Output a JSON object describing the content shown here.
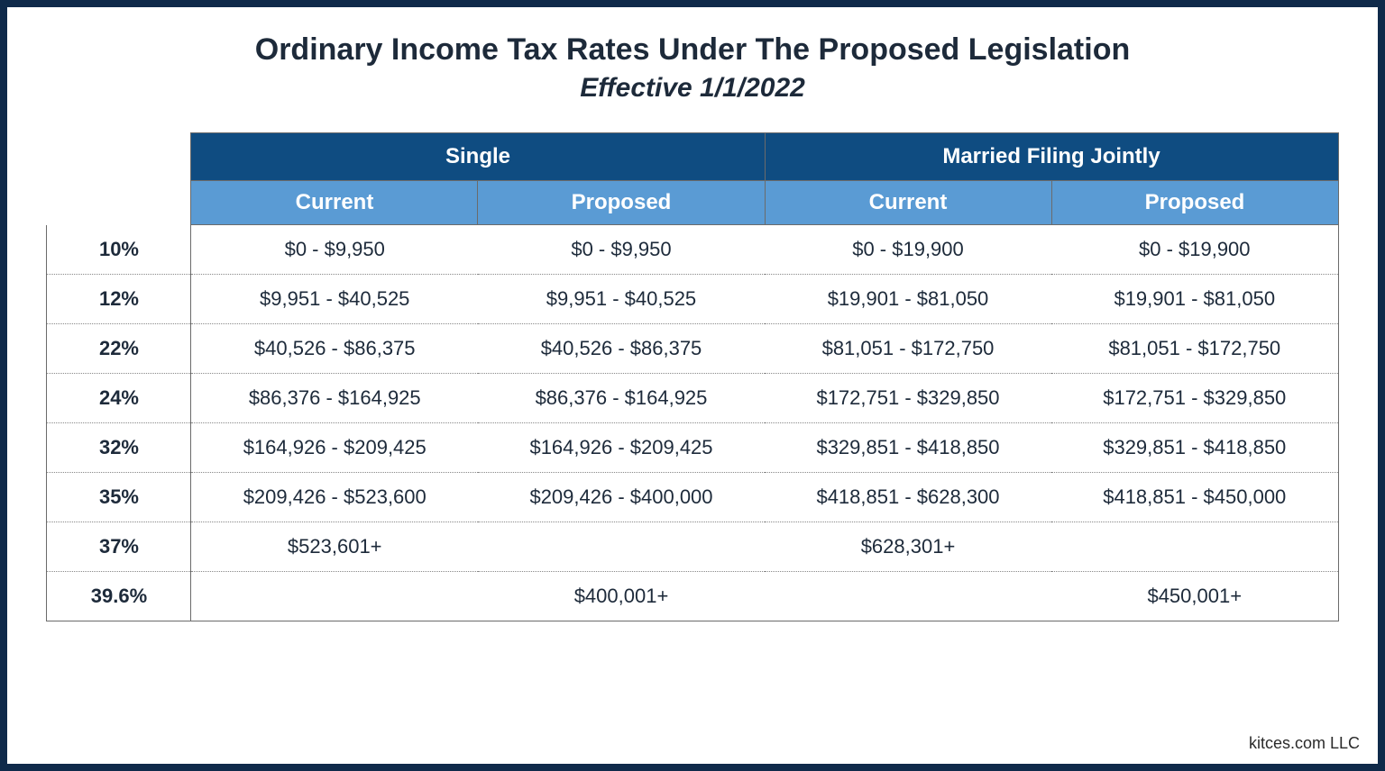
{
  "title": "Ordinary Income Tax Rates Under The Proposed Legislation",
  "subtitle": "Effective 1/1/2022",
  "footer": "kitces.com LLC",
  "colors": {
    "frame_border": "#0f2a4a",
    "group_header_bg": "#0f4c81",
    "sub_header_bg": "#5a9bd4",
    "header_text": "#ffffff",
    "body_text": "#1d2a3a",
    "cell_border": "#6b6b6b",
    "row_separator": "#888888"
  },
  "fontsizes": {
    "title": 34,
    "subtitle": 30,
    "header": 24,
    "body": 22,
    "footer": 18
  },
  "table": {
    "groups": [
      {
        "label": "Single"
      },
      {
        "label": "Married Filing Jointly"
      }
    ],
    "subheaders": [
      "Current",
      "Proposed",
      "Current",
      "Proposed"
    ],
    "rows": [
      {
        "rate": "10%",
        "single_current": "$0 - $9,950",
        "single_proposed": "$0 - $9,950",
        "married_current": "$0 - $19,900",
        "married_proposed": "$0 - $19,900"
      },
      {
        "rate": "12%",
        "single_current": "$9,951 - $40,525",
        "single_proposed": "$9,951 - $40,525",
        "married_current": "$19,901 - $81,050",
        "married_proposed": "$19,901 - $81,050"
      },
      {
        "rate": "22%",
        "single_current": "$40,526 - $86,375",
        "single_proposed": "$40,526 - $86,375",
        "married_current": "$81,051 - $172,750",
        "married_proposed": "$81,051 - $172,750"
      },
      {
        "rate": "24%",
        "single_current": "$86,376 - $164,925",
        "single_proposed": "$86,376 - $164,925",
        "married_current": "$172,751 - $329,850",
        "married_proposed": "$172,751 - $329,850"
      },
      {
        "rate": "32%",
        "single_current": "$164,926 - $209,425",
        "single_proposed": "$164,926 - $209,425",
        "married_current": "$329,851 - $418,850",
        "married_proposed": "$329,851 - $418,850"
      },
      {
        "rate": "35%",
        "single_current": "$209,426 - $523,600",
        "single_proposed": "$209,426 - $400,000",
        "married_current": "$418,851 - $628,300",
        "married_proposed": "$418,851 - $450,000"
      },
      {
        "rate": "37%",
        "single_current": "$523,601+",
        "single_proposed": "",
        "married_current": "$628,301+",
        "married_proposed": ""
      },
      {
        "rate": "39.6%",
        "single_current": "",
        "single_proposed": "$400,001+",
        "married_current": "",
        "married_proposed": "$450,001+"
      }
    ]
  }
}
